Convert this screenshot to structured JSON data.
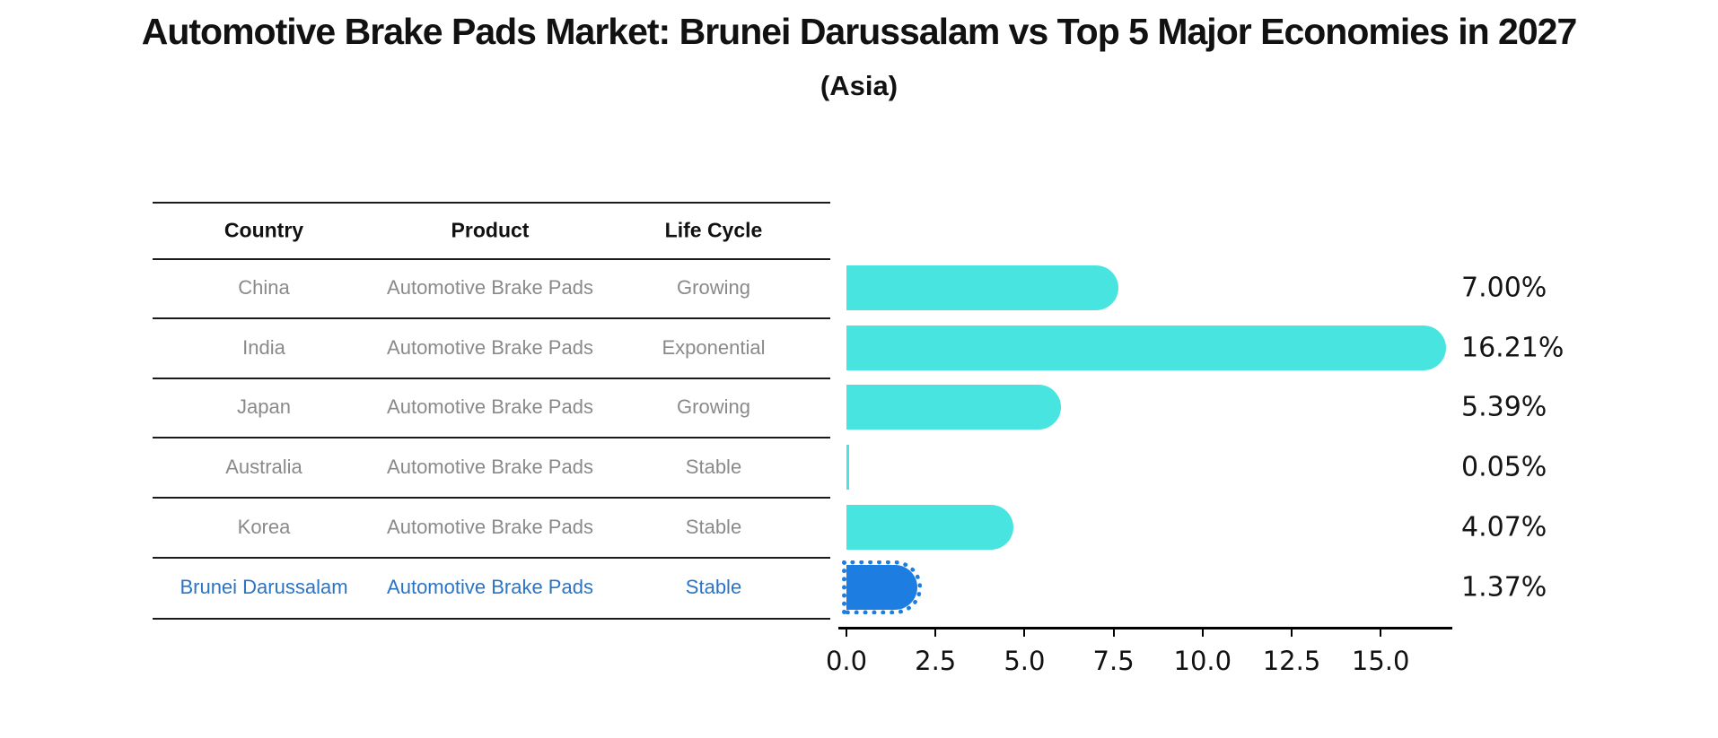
{
  "title": "Automotive Brake Pads Market: Brunei Darussalam vs Top 5 Major Economies in 2027",
  "subtitle": "(Asia)",
  "table": {
    "headers": [
      "Country",
      "Product",
      "Life Cycle"
    ],
    "rows": [
      {
        "country": "China",
        "product": "Automotive Brake Pads",
        "life_cycle": "Growing",
        "highlight": false
      },
      {
        "country": "India",
        "product": "Automotive Brake Pads",
        "life_cycle": "Exponential",
        "highlight": false
      },
      {
        "country": "Japan",
        "product": "Automotive Brake Pads",
        "life_cycle": "Growing",
        "highlight": false
      },
      {
        "country": "Australia",
        "product": "Automotive Brake Pads",
        "life_cycle": "Stable",
        "highlight": false
      },
      {
        "country": "Korea",
        "product": "Automotive Brake Pads",
        "life_cycle": "Stable",
        "highlight": false
      },
      {
        "country": "Brunei Darussalam",
        "product": "Automotive Brake Pads",
        "life_cycle": "Stable",
        "highlight": true
      }
    ]
  },
  "chart_data": {
    "type": "bar",
    "orientation": "horizontal",
    "title": "Automotive Brake Pads Market: Brunei Darussalam vs Top 5 Major Economies in 2027 (Asia)",
    "categories": [
      "China",
      "India",
      "Japan",
      "Australia",
      "Korea",
      "Brunei Darussalam"
    ],
    "values": [
      7.0,
      16.21,
      5.39,
      0.05,
      4.07,
      1.37
    ],
    "value_labels": [
      "7.00%",
      "16.21%",
      "5.39%",
      "0.05%",
      "4.07%",
      "1.37%"
    ],
    "x_ticks": [
      "0.0",
      "2.5",
      "5.0",
      "7.5",
      "10.0",
      "12.5",
      "15.0"
    ],
    "xlim": [
      0,
      17
    ],
    "xlabel": "",
    "ylabel": "",
    "grid": false,
    "legend_position": "none",
    "highlight_index": 5,
    "colors": {
      "bar_default": "#48E5E0",
      "bar_highlight": "#1E7DE1",
      "highlight_text": "#2B74C4",
      "text_muted": "#8a8a8a",
      "axis": "#000000"
    }
  }
}
